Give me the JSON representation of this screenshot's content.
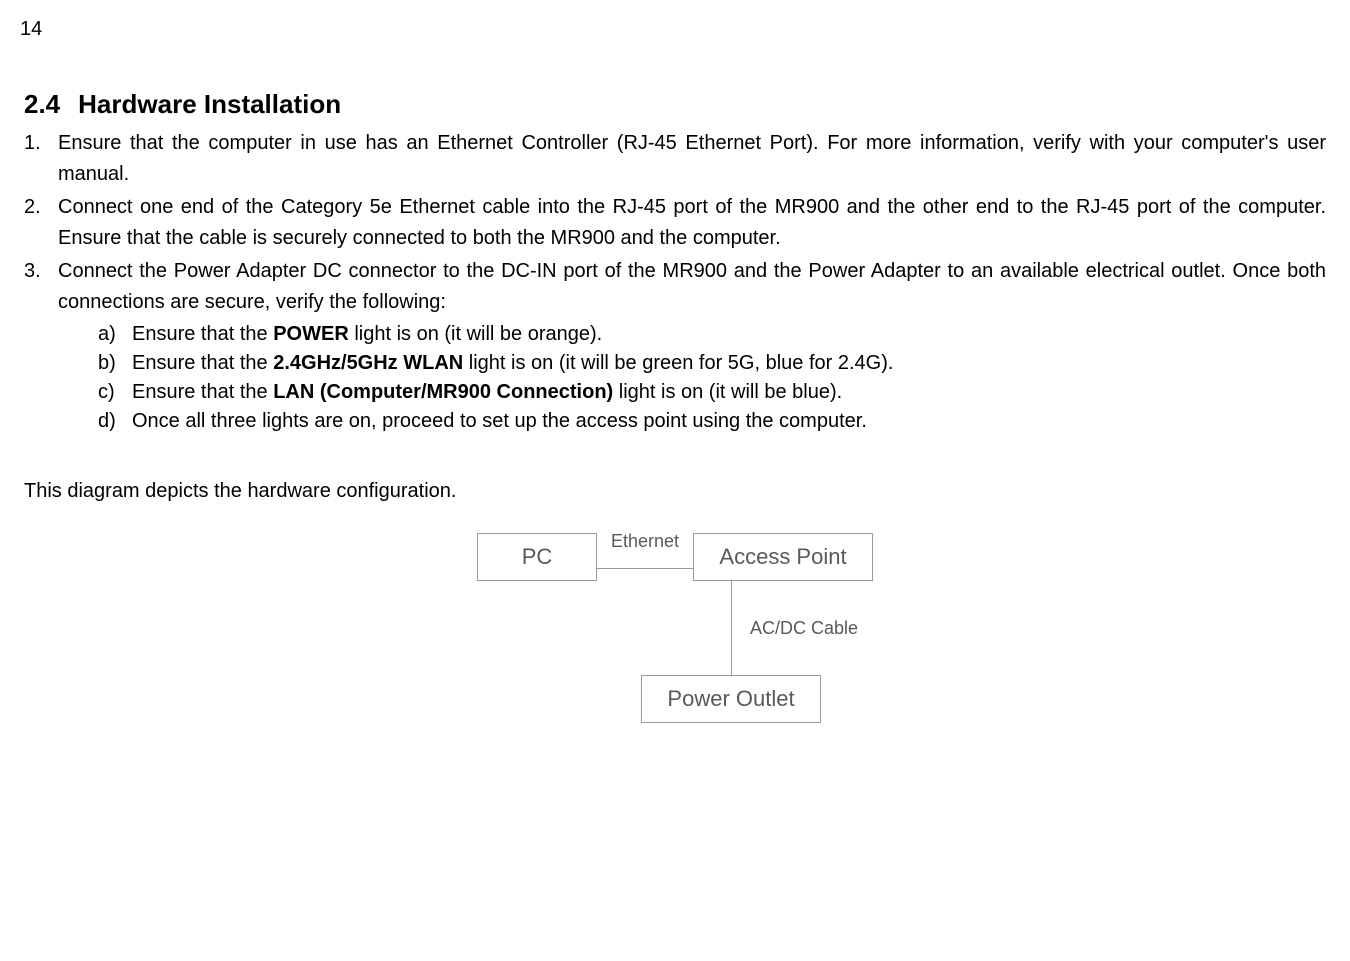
{
  "page_number": "14",
  "section": {
    "number": "2.4",
    "title": "Hardware Installation"
  },
  "steps": [
    {
      "text": "Ensure that the computer in use has an Ethernet Controller (RJ-45 Ethernet Port). For more information, verify with your computer's user manual."
    },
    {
      "text": "Connect one end of the Category 5e Ethernet cable into the RJ-45 port of the MR900 and the other end to the RJ-45 port of the computer. Ensure that the cable is securely connected to both the MR900 and the computer."
    },
    {
      "text": "Connect the Power Adapter DC connector to the DC-IN port of the MR900 and the Power Adapter to an available electrical outlet. Once both connections are secure, verify the following:"
    }
  ],
  "substeps": [
    {
      "pre": "Ensure that the ",
      "bold": "POWER",
      "post": " light is on (it will be orange)."
    },
    {
      "pre": "Ensure that the ",
      "bold": "2.4GHz/5GHz WLAN",
      "post": " light is on (it will be green for 5G, blue for 2.4G)."
    },
    {
      "pre": "Ensure that the ",
      "bold": "LAN (Computer/MR900 Connection)",
      "post": " light is on (it will be blue)."
    },
    {
      "pre": "Once all three lights are on, proceed to set up the access point using the computer.",
      "bold": "",
      "post": ""
    }
  ],
  "diagram_caption": "This diagram depicts the hardware configuration.",
  "diagram": {
    "type": "flowchart",
    "nodes": {
      "pc": "PC",
      "ap": "Access Point",
      "po": "Power Outlet"
    },
    "edges": {
      "ethernet": "Ethernet",
      "acdc": "AC/DC Cable"
    },
    "colors": {
      "node_border": "#9a9a9a",
      "node_text": "#595959",
      "edge_line": "#9a9a9a",
      "edge_text": "#595959",
      "background": "#ffffff"
    },
    "font_sizes": {
      "node": 22,
      "edge": 18
    }
  }
}
